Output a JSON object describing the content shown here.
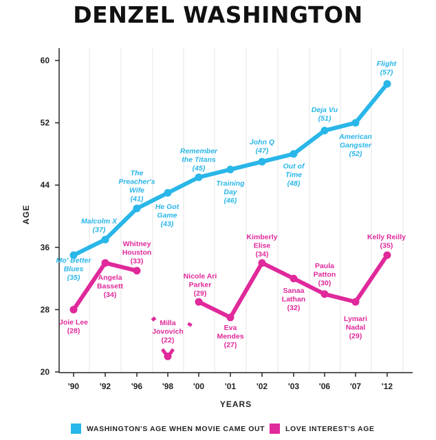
{
  "title": "DENZEL WASHINGTON",
  "chart_data": {
    "type": "line",
    "title": "DENZEL WASHINGTON",
    "xlabel": "YEARS",
    "ylabel": "AGE",
    "categories": [
      "'90",
      "'92",
      "'96",
      "'98",
      "'00",
      "'01",
      "'02",
      "'03",
      "'06",
      "'07",
      "'12"
    ],
    "ylim": [
      20,
      62
    ],
    "yticks": [
      "20",
      "28",
      "36",
      "44",
      "52",
      "60"
    ],
    "grid": "vertical",
    "series": [
      {
        "name": "WASHINGTON'S AGE WHEN MOVIE CAME OUT",
        "color": "#29b6e8",
        "values": [
          35,
          37,
          41,
          43,
          45,
          46,
          47,
          48,
          51,
          52,
          57
        ],
        "labels": [
          [
            "Mo' Better",
            "Blues",
            "(35)"
          ],
          [
            "Malcolm X",
            "(37)"
          ],
          [
            "The",
            "Preacher's",
            "Wife",
            "(41)"
          ],
          [
            "He Got",
            "Game",
            "(43)"
          ],
          [
            "Remember",
            "the Titans",
            "(45)"
          ],
          [
            "Training",
            "Day",
            "(46)"
          ],
          [
            "John Q",
            "(47)"
          ],
          [
            "Out of",
            "Time",
            "(48)"
          ],
          [
            "Deja Vu",
            "(51)"
          ],
          [
            "American",
            "Gangster",
            "(52)"
          ],
          [
            "Flight",
            "(57)"
          ]
        ]
      },
      {
        "name": "LOVE INTEREST'S AGE",
        "color": "#e0299a",
        "values": [
          28,
          34,
          33,
          22,
          29,
          27,
          34,
          32,
          30,
          29,
          35
        ],
        "labels": [
          [
            "Joie Lee",
            "(28)"
          ],
          [
            "Angela",
            "Bassett",
            "(34)"
          ],
          [
            "Whitney",
            "Houston",
            "(33)"
          ],
          [
            "Milla",
            "Jovovich",
            "(22)"
          ],
          [
            "Nicole Ari",
            "Parker",
            "(29)"
          ],
          [
            "Eva",
            "Mendes",
            "(27)"
          ],
          [
            "Kimberly",
            "Elise",
            "(34)"
          ],
          [
            "Sanaa",
            "Lathan",
            "(32)"
          ],
          [
            "Paula",
            "Patton",
            "(30)"
          ],
          [
            "Lymari",
            "Nadal",
            "(29)"
          ],
          [
            "Kelly Reilly",
            "(35)"
          ]
        ]
      }
    ],
    "legend": {
      "position": "bottom",
      "items": [
        {
          "label": "WASHINGTON'S AGE WHEN MOVIE CAME OUT",
          "color": "#29b6e8"
        },
        {
          "label": "LOVE INTEREST'S AGE",
          "color": "#e0299a"
        }
      ]
    }
  }
}
